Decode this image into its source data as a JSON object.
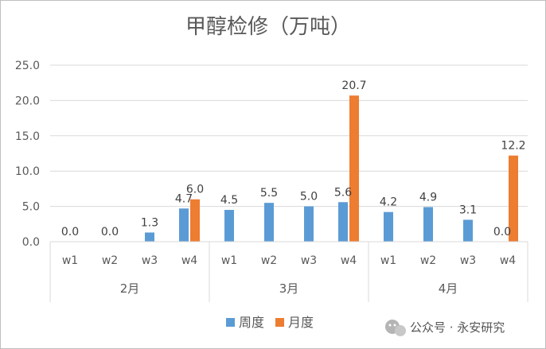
{
  "chart_data": {
    "type": "bar",
    "title": "甲醇检修（万吨）",
    "ylim": [
      0,
      25
    ],
    "yticks": [
      "0.0",
      "5.0",
      "10.0",
      "15.0",
      "20.0",
      "25.0"
    ],
    "grid": true,
    "legend_position": "bottom",
    "groups": [
      {
        "label": "2月",
        "categories": [
          "w1",
          "w2",
          "w3",
          "w4"
        ]
      },
      {
        "label": "3月",
        "categories": [
          "w1",
          "w2",
          "w3",
          "w4"
        ]
      },
      {
        "label": "4月",
        "categories": [
          "w1",
          "w2",
          "w3",
          "w4"
        ]
      }
    ],
    "series": [
      {
        "name": "周度",
        "color": "#5B9BD5",
        "values": [
          0.0,
          0.0,
          1.3,
          4.7,
          4.5,
          5.5,
          5.0,
          5.6,
          4.2,
          4.9,
          3.1,
          0.0
        ],
        "labels": [
          "0.0",
          "0.0",
          "1.3",
          "4.7",
          "4.5",
          "5.5",
          "5.0",
          "5.6",
          "4.2",
          "4.9",
          "3.1",
          "0.0"
        ]
      },
      {
        "name": "月度",
        "color": "#ED7D31",
        "values": [
          null,
          null,
          null,
          6.0,
          null,
          null,
          null,
          20.7,
          null,
          null,
          null,
          12.2
        ],
        "labels": [
          "",
          "",
          "",
          "6.0",
          "",
          "",
          "",
          "20.7",
          "",
          "",
          "",
          "12.2"
        ]
      }
    ]
  },
  "watermark": {
    "text": "公众号 · 永安研究",
    "icon": "wechat-icon"
  }
}
